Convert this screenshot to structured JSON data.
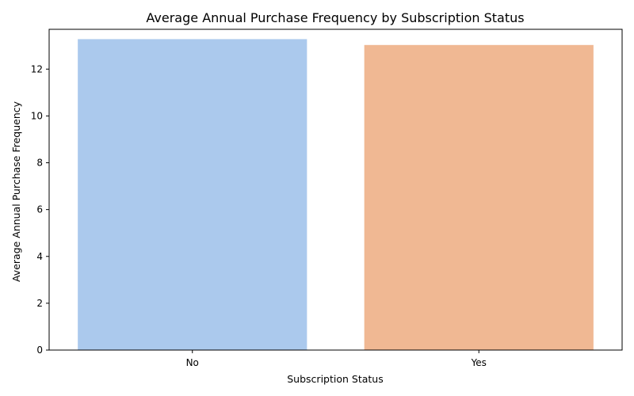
{
  "chart_data": {
    "type": "bar",
    "title": "Average Annual Purchase Frequency by Subscription Status",
    "xlabel": "Subscription Status",
    "ylabel": "Average Annual Purchase Frequency",
    "categories": [
      "No",
      "Yes"
    ],
    "values": [
      13.28,
      13.03
    ],
    "colors": [
      "#abc9ed",
      "#f0b893"
    ],
    "ylim": [
      0,
      13.7
    ],
    "yticks": [
      0,
      2,
      4,
      6,
      8,
      10,
      12
    ],
    "grid": false,
    "legend": "none"
  }
}
